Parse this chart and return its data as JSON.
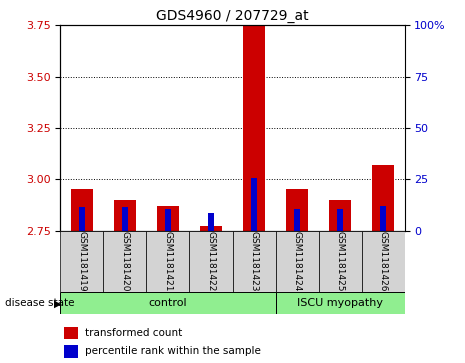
{
  "title": "GDS4960 / 207729_at",
  "samples": [
    "GSM1181419",
    "GSM1181420",
    "GSM1181421",
    "GSM1181422",
    "GSM1181423",
    "GSM1181424",
    "GSM1181425",
    "GSM1181426"
  ],
  "red_values": [
    2.95,
    2.9,
    2.87,
    2.77,
    3.76,
    2.95,
    2.9,
    3.07
  ],
  "blue_values": [
    2.865,
    2.865,
    2.855,
    2.835,
    3.005,
    2.855,
    2.855,
    2.87
  ],
  "ylim_left": [
    2.75,
    3.75
  ],
  "ylim_right": [
    0,
    100
  ],
  "left_yticks": [
    2.75,
    3.0,
    3.25,
    3.5,
    3.75
  ],
  "right_yticks": [
    0,
    25,
    50,
    75,
    100
  ],
  "right_yticklabels": [
    "0",
    "25",
    "50",
    "75",
    "100%"
  ],
  "grid_lines": [
    3.0,
    3.25,
    3.5
  ],
  "bar_bottom": 2.75,
  "control_label": "control",
  "iscu_label": "ISCU myopathy",
  "disease_state_label": "disease state",
  "legend_red": "transformed count",
  "legend_blue": "percentile rank within the sample",
  "group_bg_color": "#90EE90",
  "sample_bg_color": "#D3D3D3",
  "bar_red_color": "#CC0000",
  "bar_blue_color": "#0000CC",
  "left_axis_color": "#CC0000",
  "right_axis_color": "#0000CC",
  "fig_width": 4.65,
  "fig_height": 3.63,
  "dpi": 100
}
